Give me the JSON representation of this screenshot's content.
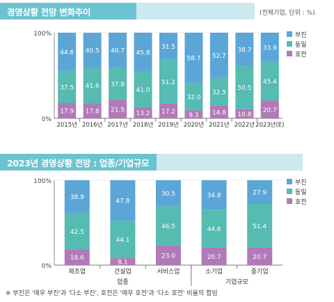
{
  "section1": {
    "title": "경영상황 전망 변화추이",
    "unit": "(전체기업, 단위 : %)"
  },
  "section2": {
    "title": "2023년 경영상황 전망 : 업종/기업규모"
  },
  "footnote": "※ 부진은 '매우 부진'과 '다소 부진', 호전은 '매우 호전'과 '다소 호전' 비율의 합임",
  "colors": {
    "부진": "#5ba6d7",
    "동일": "#56bbb1",
    "호전": "#b279b8"
  },
  "chart_data": [
    {
      "type": "bar",
      "stacked": true,
      "categories": [
        "2015년",
        "2016년",
        "2017년",
        "2018년",
        "2019년",
        "2020년",
        "2021년",
        "2022년",
        "2023년(E)"
      ],
      "series": [
        {
          "name": "호전",
          "values": [
            17.9,
            17.8,
            21.5,
            13.2,
            17.2,
            9.3,
            14.8,
            10.8,
            20.7
          ]
        },
        {
          "name": "동일",
          "values": [
            37.5,
            41.6,
            37.8,
            41.0,
            51.2,
            32.0,
            32.5,
            50.5,
            45.4
          ]
        },
        {
          "name": "부진",
          "values": [
            44.6,
            40.5,
            40.7,
            45.8,
            31.5,
            58.7,
            52.7,
            38.7,
            33.9
          ]
        }
      ],
      "yticks": [
        "0%",
        "100%"
      ],
      "ylim": [
        0,
        100
      ],
      "legend": [
        "부진",
        "동일",
        "호전"
      ],
      "legend_position": "right"
    },
    {
      "type": "bar",
      "stacked": true,
      "categories": [
        "제조업",
        "건설업",
        "서비스업",
        "소기업",
        "중기업"
      ],
      "groups": [
        {
          "label": "업종"
        },
        {
          "label": "기업규모"
        }
      ],
      "series": [
        {
          "name": "호전",
          "values": [
            18.6,
            8.1,
            23.0,
            20.7,
            20.7
          ]
        },
        {
          "name": "동일",
          "values": [
            42.5,
            44.1,
            46.5,
            44.6,
            51.4
          ]
        },
        {
          "name": "부진",
          "values": [
            38.9,
            47.8,
            30.5,
            34.8,
            27.9
          ]
        }
      ],
      "yticks": [
        "0%",
        "100%"
      ],
      "ylim": [
        0,
        100
      ],
      "legend": [
        "부진",
        "동일",
        "호전"
      ],
      "legend_position": "right"
    }
  ]
}
